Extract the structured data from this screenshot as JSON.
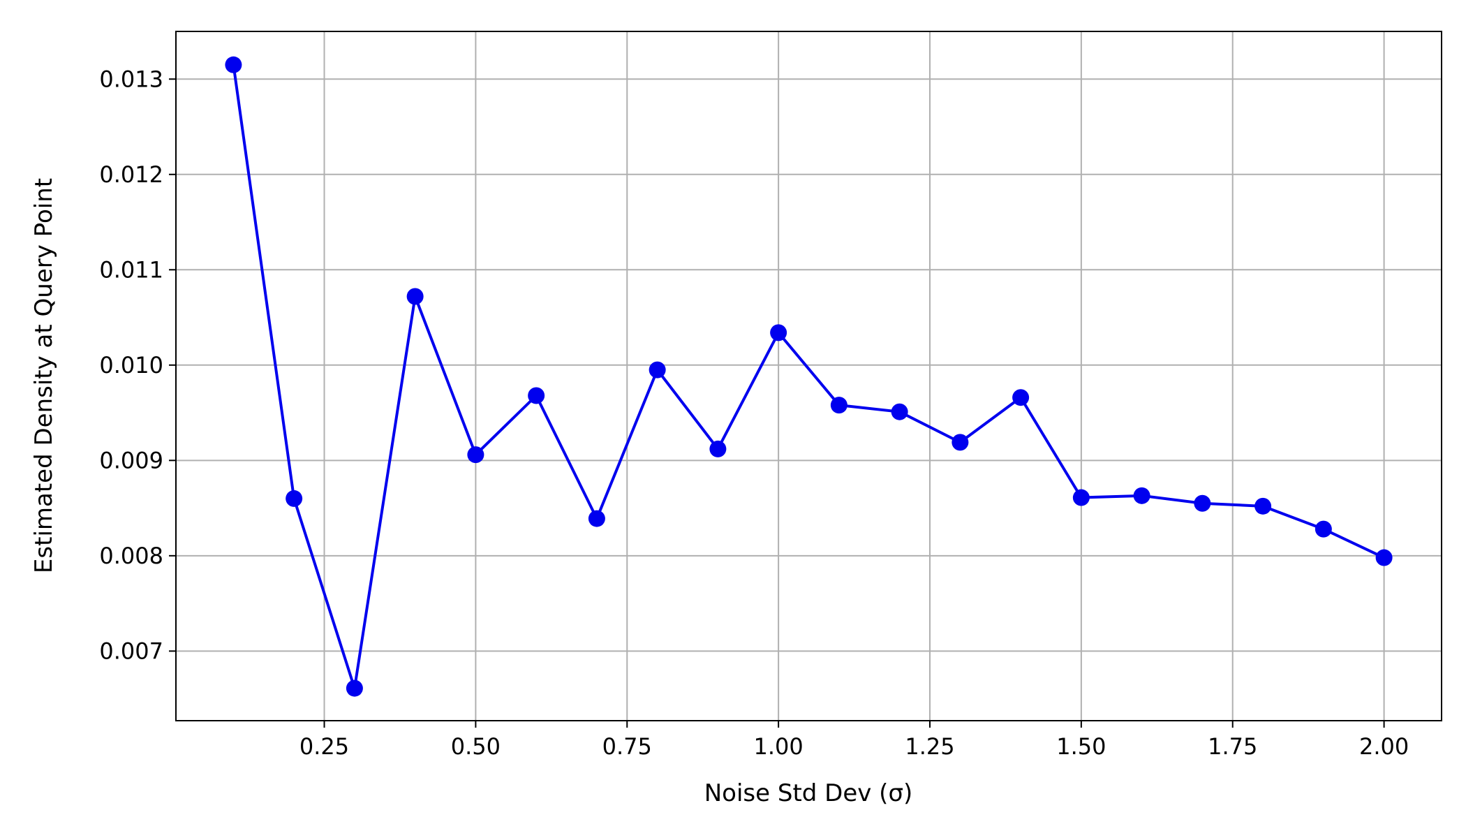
{
  "chart_data": {
    "type": "line",
    "title": "",
    "xlabel": "Noise Std Dev (σ)",
    "ylabel": "Estimated Density at Query Point",
    "xlim": [
      0.005,
      2.095
    ],
    "ylim": [
      0.00627,
      0.0135
    ],
    "xticks": [
      0.25,
      0.5,
      0.75,
      1.0,
      1.25,
      1.5,
      1.75,
      2.0
    ],
    "xtick_labels": [
      "0.25",
      "0.50",
      "0.75",
      "1.00",
      "1.25",
      "1.50",
      "1.75",
      "2.00"
    ],
    "yticks": [
      0.007,
      0.008,
      0.009,
      0.01,
      0.011,
      0.012,
      0.013
    ],
    "ytick_labels": [
      "0.007",
      "0.008",
      "0.009",
      "0.010",
      "0.011",
      "0.012",
      "0.013"
    ],
    "grid": true,
    "series": [
      {
        "name": "density",
        "color": "#0000ee",
        "marker": "circle",
        "x": [
          0.1,
          0.2,
          0.3,
          0.4,
          0.5,
          0.6,
          0.7,
          0.8,
          0.9,
          1.0,
          1.1,
          1.2,
          1.3,
          1.4,
          1.5,
          1.6,
          1.7,
          1.8,
          1.9,
          2.0
        ],
        "y": [
          0.01315,
          0.0086,
          0.00661,
          0.01072,
          0.00906,
          0.00968,
          0.00839,
          0.00995,
          0.00912,
          0.01034,
          0.00958,
          0.00951,
          0.00919,
          0.00966,
          0.00861,
          0.00863,
          0.00855,
          0.00852,
          0.00828,
          0.00798
        ]
      }
    ]
  }
}
